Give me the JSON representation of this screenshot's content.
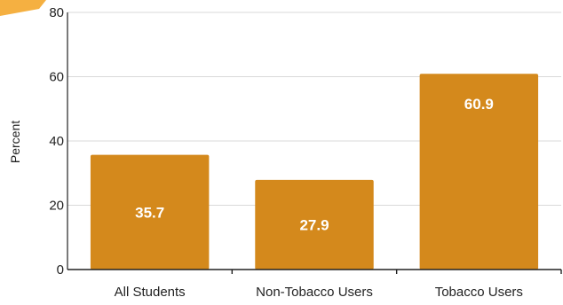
{
  "chart_data": {
    "type": "bar",
    "categories": [
      "All Students",
      "Non-Tobacco Users",
      "Tobacco Users"
    ],
    "values": [
      35.7,
      27.9,
      60.9
    ],
    "data_labels": [
      "35.7",
      "27.9",
      "60.9"
    ],
    "ylabel": "Percent",
    "ylim": [
      0,
      80
    ],
    "yticks": [
      0,
      20,
      40,
      60,
      80
    ],
    "grid": true,
    "legend": "none",
    "colors": {
      "bar": "#D4891C",
      "grid": "#d9d9d9",
      "axis": "#222222",
      "corner_accent": "#F5B041"
    }
  }
}
